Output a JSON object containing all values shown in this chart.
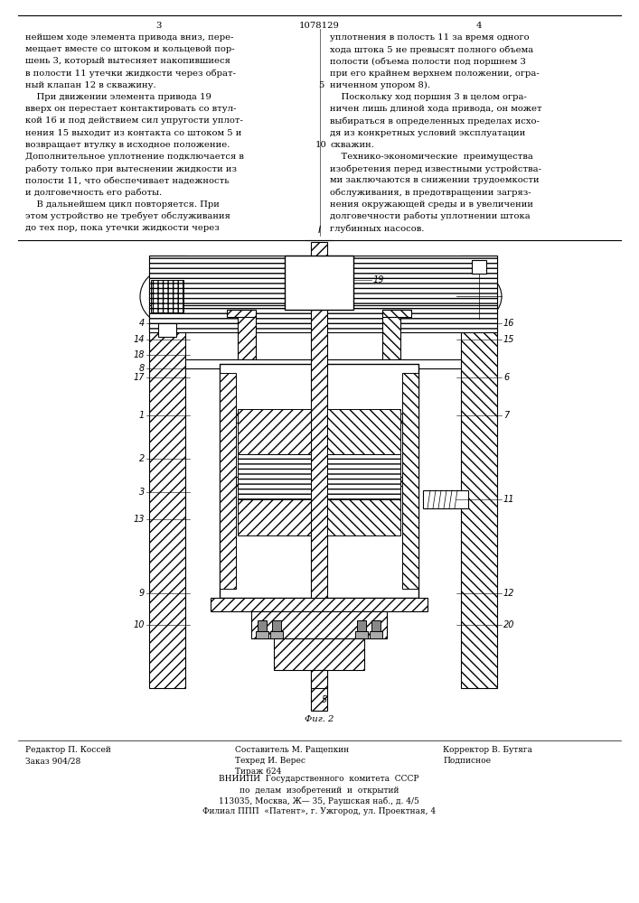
{
  "patent_number": "1078129",
  "page_left": "3",
  "page_right": "4",
  "background": "#ffffff",
  "text_color": "#000000",
  "col_left_text": [
    "нейшем ходе элемента привода вниз, пере-",
    "мещает вместе со штоком и кольцевой пор-",
    "шень 3, который вытесняет накопившиеся",
    "в полости 11 утечки жидкости через обрат-",
    "ный клапан 12 в скважину.",
    "    При движении элемента привода 19",
    "вверх он перестает контактировать со втул-",
    "кой 16 и под действием сил упругости уплот-",
    "нения 15 выходит из контакта со штоком 5 и",
    "возвращает втулку в исходное положение.",
    "Дополнительное уплотнение подключается в",
    "работу только при вытеснении жидкости из",
    "полости 11, что обеспечивает надежность",
    "и долговечность его работы.",
    "    В дальнейшем цикл повторяется. При",
    "этом устройство не требует обслуживания",
    "до тех пор, пока утечки жидкости через"
  ],
  "col_right_text": [
    "уплотнения в полость 11 за время одного",
    "хода штока 5 не превысят полного объема",
    "полости (объема полости под поршнем 3",
    "при его крайнем верхнем положении, огра-",
    "ниченном упором 8).",
    "    Поскольку ход поршня 3 в целом огра-",
    "ничен лишь длиной хода привода, он может",
    "выбираться в определенных пределах исхо-",
    "дя из конкретных условий эксплуатации",
    "скважин.",
    "    Технико-экономические  преимущества",
    "изобретения перед известными устройства-",
    "ми заключаются в снижении трудоемкости",
    "обслуживания, в предотвращении загряз-",
    "нения окружающей среды и в увеличении",
    "долговечности работы уплотнении штока",
    "глубинных насосов."
  ],
  "fig_caption": "Фиг. 2",
  "footer_left_lines": [
    "Редактор П. Коссей",
    "Заказ 904/28"
  ],
  "footer_center_lines": [
    "Составитель М. Ращепкин",
    "Техред И. Верес",
    "Тираж 624"
  ],
  "footer_right_lines": [
    "Корректор В. Бутяга",
    "Подписное"
  ],
  "footer_bottom_lines": [
    "ВНИИПИ  Государственного  комитета  СССР",
    "по  делам  изобретений  и  открытий",
    "113035, Москва, Ж— 35, Раушская наб., д. 4/5",
    "Филиал ППП  «Патент», г. Ужгород, ул. Проектная, 4"
  ]
}
